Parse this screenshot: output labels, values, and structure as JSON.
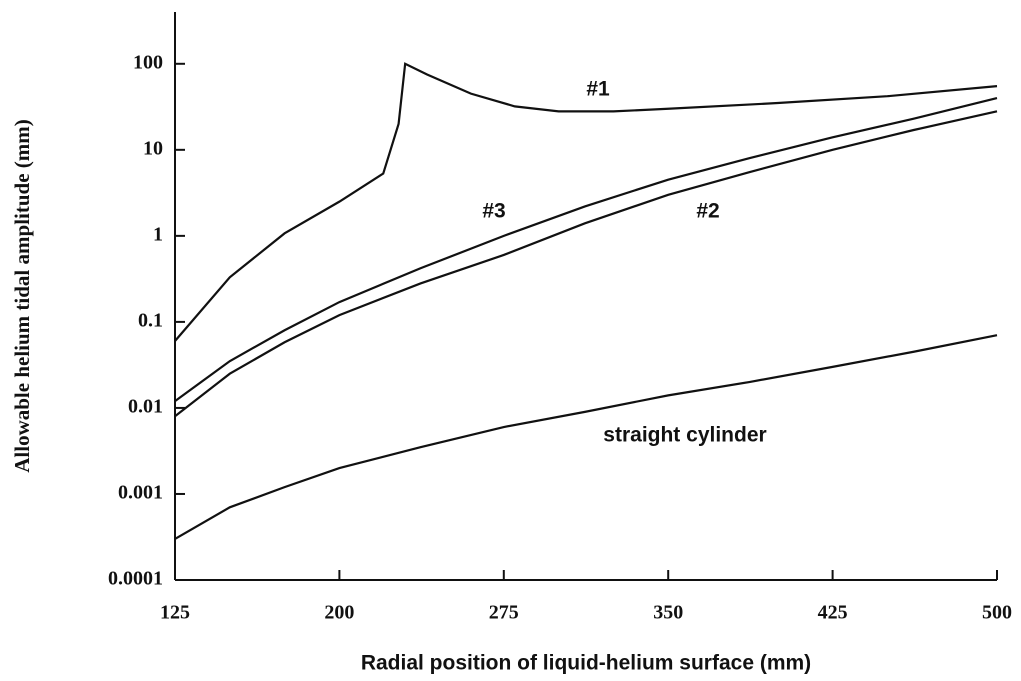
{
  "chart_data": {
    "type": "line",
    "x_label": "Radial position of liquid-helium surface    (mm)",
    "y_label": "Allowable helium tidal amplitude (mm)",
    "log_y": true,
    "xlim": [
      125,
      500
    ],
    "xticks": [
      125,
      200,
      275,
      350,
      425,
      500
    ],
    "ylim": [
      0.0001,
      400
    ],
    "yticks": [
      0.0001,
      0.001,
      0.01,
      0.1,
      1,
      10,
      100
    ],
    "series": [
      {
        "name": "#1",
        "color": "#111111",
        "x": [
          125,
          150,
          175,
          200,
          220,
          227,
          230,
          240,
          260,
          280,
          300,
          325,
          350,
          400,
          450,
          500
        ],
        "values": [
          0.06,
          0.33,
          1.07,
          2.5,
          5.3,
          20,
          100,
          75,
          45,
          32,
          28,
          28,
          30,
          35,
          42,
          55
        ]
      },
      {
        "name": "#3",
        "color": "#111111",
        "x": [
          125,
          150,
          175,
          200,
          237,
          275,
          312,
          350,
          387,
          425,
          462,
          500
        ],
        "values": [
          0.012,
          0.035,
          0.08,
          0.17,
          0.42,
          1.0,
          2.2,
          4.5,
          8,
          14,
          23,
          40
        ]
      },
      {
        "name": "#2",
        "color": "#111111",
        "x": [
          125,
          150,
          175,
          200,
          237,
          275,
          312,
          350,
          387,
          425,
          462,
          500
        ],
        "values": [
          0.008,
          0.025,
          0.058,
          0.12,
          0.28,
          0.6,
          1.4,
          3,
          5.5,
          10,
          17,
          28
        ]
      },
      {
        "name": "straight cylinder",
        "color": "#111111",
        "x": [
          125,
          150,
          175,
          200,
          237,
          275,
          312,
          350,
          387,
          425,
          462,
          500
        ],
        "values": [
          0.0003,
          0.0007,
          0.0012,
          0.002,
          0.0035,
          0.006,
          0.009,
          0.014,
          0.02,
          0.03,
          0.045,
          0.07
        ]
      }
    ]
  }
}
